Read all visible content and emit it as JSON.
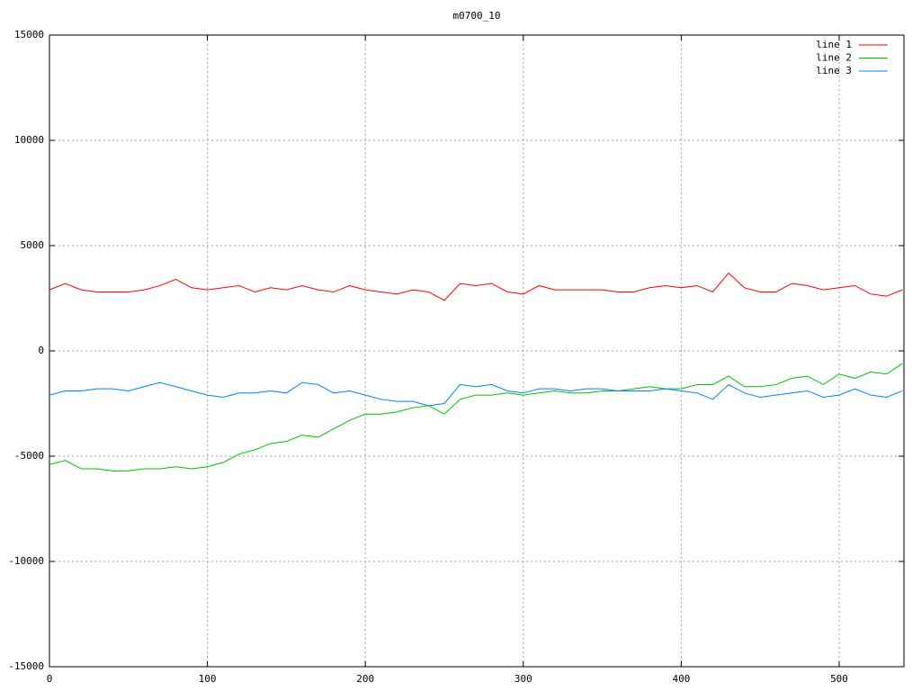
{
  "chart_data": {
    "type": "line",
    "title": "m0700_10",
    "x": [
      0,
      10,
      20,
      30,
      40,
      50,
      60,
      70,
      80,
      90,
      100,
      110,
      120,
      130,
      140,
      150,
      160,
      170,
      180,
      190,
      200,
      210,
      220,
      230,
      240,
      250,
      260,
      270,
      280,
      290,
      300,
      310,
      320,
      330,
      340,
      350,
      360,
      370,
      380,
      390,
      400,
      410,
      420,
      430,
      440,
      450,
      460,
      470,
      480,
      490,
      500,
      510,
      520,
      530,
      540
    ],
    "series": [
      {
        "name": "line 1",
        "color": "#ff0000",
        "values": [
          2900,
          3200,
          2900,
          2800,
          2800,
          2800,
          2900,
          3100,
          3400,
          3000,
          2900,
          3000,
          3100,
          2800,
          3000,
          2900,
          3100,
          2900,
          2800,
          3100,
          2900,
          2800,
          2700,
          2900,
          2800,
          2400,
          3200,
          3100,
          3200,
          2800,
          2700,
          3100,
          2900,
          2900,
          2900,
          2900,
          2800,
          2800,
          3000,
          3100,
          3000,
          3100,
          2800,
          3700,
          3000,
          2800,
          2800,
          3200,
          3100,
          2900,
          3000,
          3100,
          2700,
          2600,
          2900
        ]
      },
      {
        "name": "line 2",
        "color": "#00c000",
        "values": [
          -5400,
          -5200,
          -5600,
          -5600,
          -5700,
          -5700,
          -5600,
          -5600,
          -5500,
          -5600,
          -5500,
          -5300,
          -4900,
          -4700,
          -4400,
          -4300,
          -4000,
          -4100,
          -3700,
          -3300,
          -3000,
          -3000,
          -2900,
          -2700,
          -2600,
          -3000,
          -2300,
          -2100,
          -2100,
          -2000,
          -2100,
          -2000,
          -1900,
          -2000,
          -2000,
          -1900,
          -1900,
          -1800,
          -1700,
          -1800,
          -1800,
          -1600,
          -1600,
          -1200,
          -1700,
          -1700,
          -1600,
          -1300,
          -1200,
          -1600,
          -1100,
          -1300,
          -1000,
          -1100,
          -600
        ]
      },
      {
        "name": "line 3",
        "color": "#0080ff",
        "values": [
          -2100,
          -1900,
          -1900,
          -1800,
          -1800,
          -1900,
          -1700,
          -1500,
          -1700,
          -1900,
          -2100,
          -2200,
          -2000,
          -2000,
          -1900,
          -2000,
          -1500,
          -1600,
          -2000,
          -1900,
          -2100,
          -2300,
          -2400,
          -2400,
          -2600,
          -2500,
          -1600,
          -1700,
          -1600,
          -1900,
          -2000,
          -1800,
          -1800,
          -1900,
          -1800,
          -1800,
          -1900,
          -1900,
          -1900,
          -1800,
          -1900,
          -2000,
          -2300,
          -1600,
          -2000,
          -2200,
          -2100,
          -2000,
          -1900,
          -2200,
          -2100,
          -1800,
          -2100,
          -2200,
          -1900
        ]
      }
    ],
    "xlim": [
      0,
      541
    ],
    "xticks": [
      0,
      100,
      200,
      300,
      400,
      500
    ],
    "ylim": [
      -15000,
      15000
    ],
    "yticks": [
      -15000,
      -10000,
      -5000,
      0,
      5000,
      10000,
      15000
    ],
    "grid": true,
    "legend": "top-right"
  }
}
